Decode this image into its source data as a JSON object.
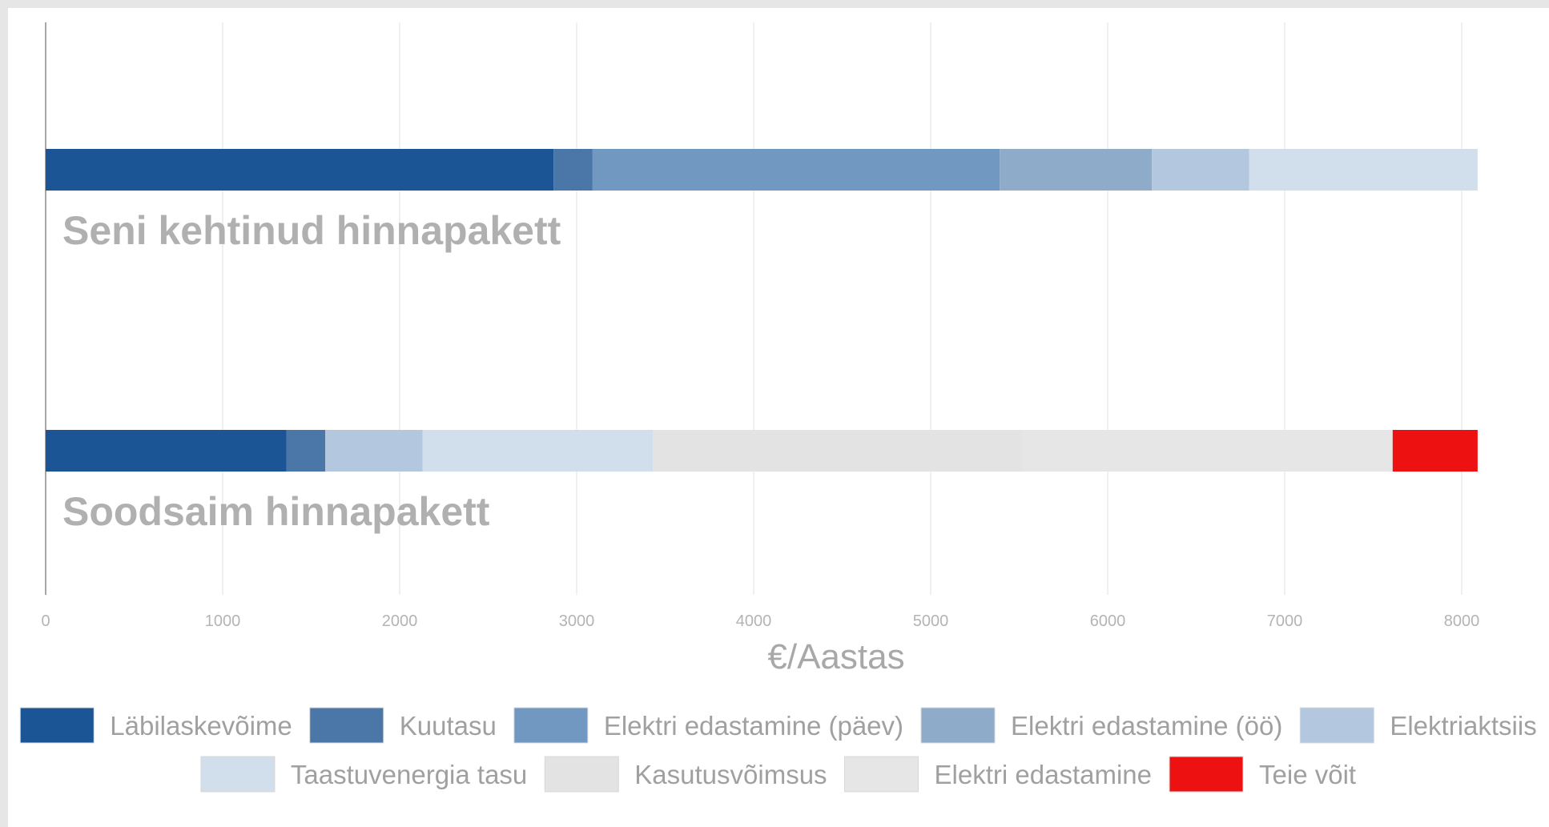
{
  "chart_data": {
    "type": "bar",
    "orientation": "horizontal",
    "stacked": true,
    "xlabel": "€/Aastas",
    "xlim": [
      0,
      8000
    ],
    "xticks": [
      "0",
      "1000",
      "2000",
      "3000",
      "4000",
      "5000",
      "6000",
      "7000",
      "8000"
    ],
    "grid": true,
    "legend_position": "bottom",
    "categories": [
      "Seni kehtinud hinnapakett",
      "Soodsaim hinnapakett"
    ],
    "series": [
      {
        "name": "Läbilaskevõime",
        "color": "#1b5596",
        "values": [
          2870,
          1360
        ]
      },
      {
        "name": "Kuutasu",
        "color": "#4a76a8",
        "values": [
          220,
          220
        ]
      },
      {
        "name": "Elektri edastamine (päev)",
        "color": "#7098c0",
        "values": [
          2300,
          0
        ]
      },
      {
        "name": "Elektri edastamine (öö)",
        "color": "#8eabca",
        "values": [
          860,
          0
        ]
      },
      {
        "name": "Elektriaktsiis",
        "color": "#b3c8de",
        "values": [
          550,
          550
        ]
      },
      {
        "name": "Taastuvenergia tasu",
        "color": "#d1deeb",
        "values": [
          1290,
          1300
        ]
      },
      {
        "name": "Kasutusvõimsus",
        "color": "#e3e3e3",
        "values": [
          0,
          2090
        ]
      },
      {
        "name": "Elektri edastamine",
        "color": "#e6e6e6",
        "values": [
          0,
          2090
        ]
      },
      {
        "name": "Teie võit",
        "color": "#ee1111",
        "values": [
          0,
          480
        ]
      }
    ]
  }
}
